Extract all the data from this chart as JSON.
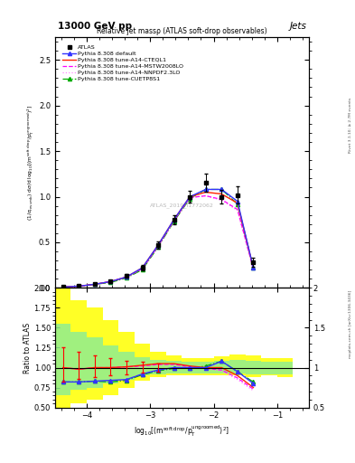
{
  "title_top": "13000 GeV pp",
  "title_right": "Jets",
  "plot_title": "Relative jet massρ (ATLAS soft-drop observables)",
  "watermark": "ATLAS_2019_I1772062",
  "ylabel_ratio": "Ratio to ATLAS",
  "right_label": "mcplots.cern.ch [arXiv:1306.3436]",
  "right_label2": "Rivet 3.1.10; ≥ 2.7M events",
  "xlim": [
    -4.5,
    -0.5
  ],
  "ylim_main": [
    0.0,
    2.75
  ],
  "ylim_ratio": [
    0.5,
    2.0
  ],
  "x_ticks": [
    -4,
    -3,
    -2,
    -1
  ],
  "x_data": [
    -4.375,
    -4.125,
    -3.875,
    -3.625,
    -3.375,
    -3.125,
    -2.875,
    -2.625,
    -2.375,
    -2.125,
    -1.875,
    -1.625,
    -1.375,
    -1.125
  ],
  "atlas_y": [
    0.01,
    0.02,
    0.04,
    0.07,
    0.13,
    0.22,
    0.47,
    0.75,
    1.0,
    1.15,
    1.0,
    1.02,
    0.28,
    0.0
  ],
  "atlas_yerr": [
    0.005,
    0.005,
    0.01,
    0.015,
    0.02,
    0.03,
    0.04,
    0.05,
    0.06,
    0.1,
    0.07,
    0.09,
    0.05,
    0.0
  ],
  "default_y": [
    0.01,
    0.02,
    0.04,
    0.07,
    0.12,
    0.22,
    0.47,
    0.75,
    1.0,
    1.08,
    1.08,
    0.95,
    0.22,
    0.0
  ],
  "cteq_y": [
    0.01,
    0.02,
    0.04,
    0.07,
    0.12,
    0.22,
    0.47,
    0.75,
    1.0,
    1.05,
    1.03,
    0.93,
    0.22,
    0.0
  ],
  "mstw_y": [
    0.01,
    0.02,
    0.04,
    0.07,
    0.12,
    0.21,
    0.46,
    0.74,
    0.99,
    1.01,
    0.97,
    0.86,
    0.21,
    0.0
  ],
  "nnpdf_y": [
    0.01,
    0.02,
    0.04,
    0.07,
    0.12,
    0.21,
    0.46,
    0.74,
    0.99,
    1.01,
    0.96,
    0.85,
    0.2,
    0.0
  ],
  "cuetp_y": [
    0.01,
    0.02,
    0.04,
    0.06,
    0.11,
    0.2,
    0.45,
    0.73,
    0.98,
    1.08,
    1.08,
    0.92,
    0.22,
    0.0
  ],
  "ratio_default": [
    0.82,
    0.82,
    0.83,
    0.84,
    0.85,
    0.92,
    0.97,
    1.0,
    1.0,
    1.0,
    1.08,
    0.95,
    0.8
  ],
  "ratio_cteq": [
    1.0,
    0.98,
    1.0,
    1.0,
    1.01,
    1.03,
    1.05,
    1.05,
    1.02,
    1.0,
    1.0,
    0.9,
    0.75
  ],
  "ratio_mstw": [
    1.0,
    0.98,
    1.0,
    1.0,
    1.01,
    1.02,
    1.04,
    1.04,
    1.01,
    0.99,
    0.97,
    0.87,
    0.73
  ],
  "ratio_nnpdf": [
    1.0,
    0.98,
    1.0,
    1.0,
    1.01,
    1.02,
    1.04,
    1.04,
    1.01,
    0.99,
    0.96,
    0.85,
    0.71
  ],
  "ratio_cuetp": [
    0.82,
    0.82,
    0.83,
    0.82,
    0.84,
    0.91,
    0.96,
    0.99,
    0.99,
    1.02,
    1.08,
    0.95,
    0.82
  ],
  "band_x_edges": [
    -4.5,
    -4.25,
    -4.0,
    -3.75,
    -3.5,
    -3.25,
    -3.0,
    -2.75,
    -2.5,
    -2.25,
    -2.0,
    -1.75,
    -1.5,
    -1.25,
    -1.0,
    -0.75
  ],
  "band_yellow_lo": [
    0.42,
    0.55,
    0.6,
    0.65,
    0.75,
    0.83,
    0.88,
    0.9,
    0.9,
    0.9,
    0.9,
    0.9,
    0.88,
    0.9,
    0.88
  ],
  "band_yellow_hi": [
    2.0,
    1.85,
    1.75,
    1.6,
    1.45,
    1.3,
    1.2,
    1.15,
    1.12,
    1.12,
    1.14,
    1.16,
    1.15,
    1.12,
    1.12
  ],
  "band_green_lo": [
    0.65,
    0.72,
    0.75,
    0.8,
    0.85,
    0.9,
    0.92,
    0.93,
    0.93,
    0.93,
    0.93,
    0.93,
    0.92,
    0.92,
    0.92
  ],
  "band_green_hi": [
    1.55,
    1.45,
    1.38,
    1.28,
    1.2,
    1.13,
    1.1,
    1.08,
    1.07,
    1.07,
    1.08,
    1.1,
    1.08,
    1.07,
    1.07
  ],
  "color_atlas": "black",
  "color_default": "#3333ff",
  "color_cteq": "#ff2200",
  "color_mstw": "#ff00ff",
  "color_nnpdf": "#ff88ff",
  "color_cuetp": "#00aa00",
  "bg_color": "#ffffff"
}
